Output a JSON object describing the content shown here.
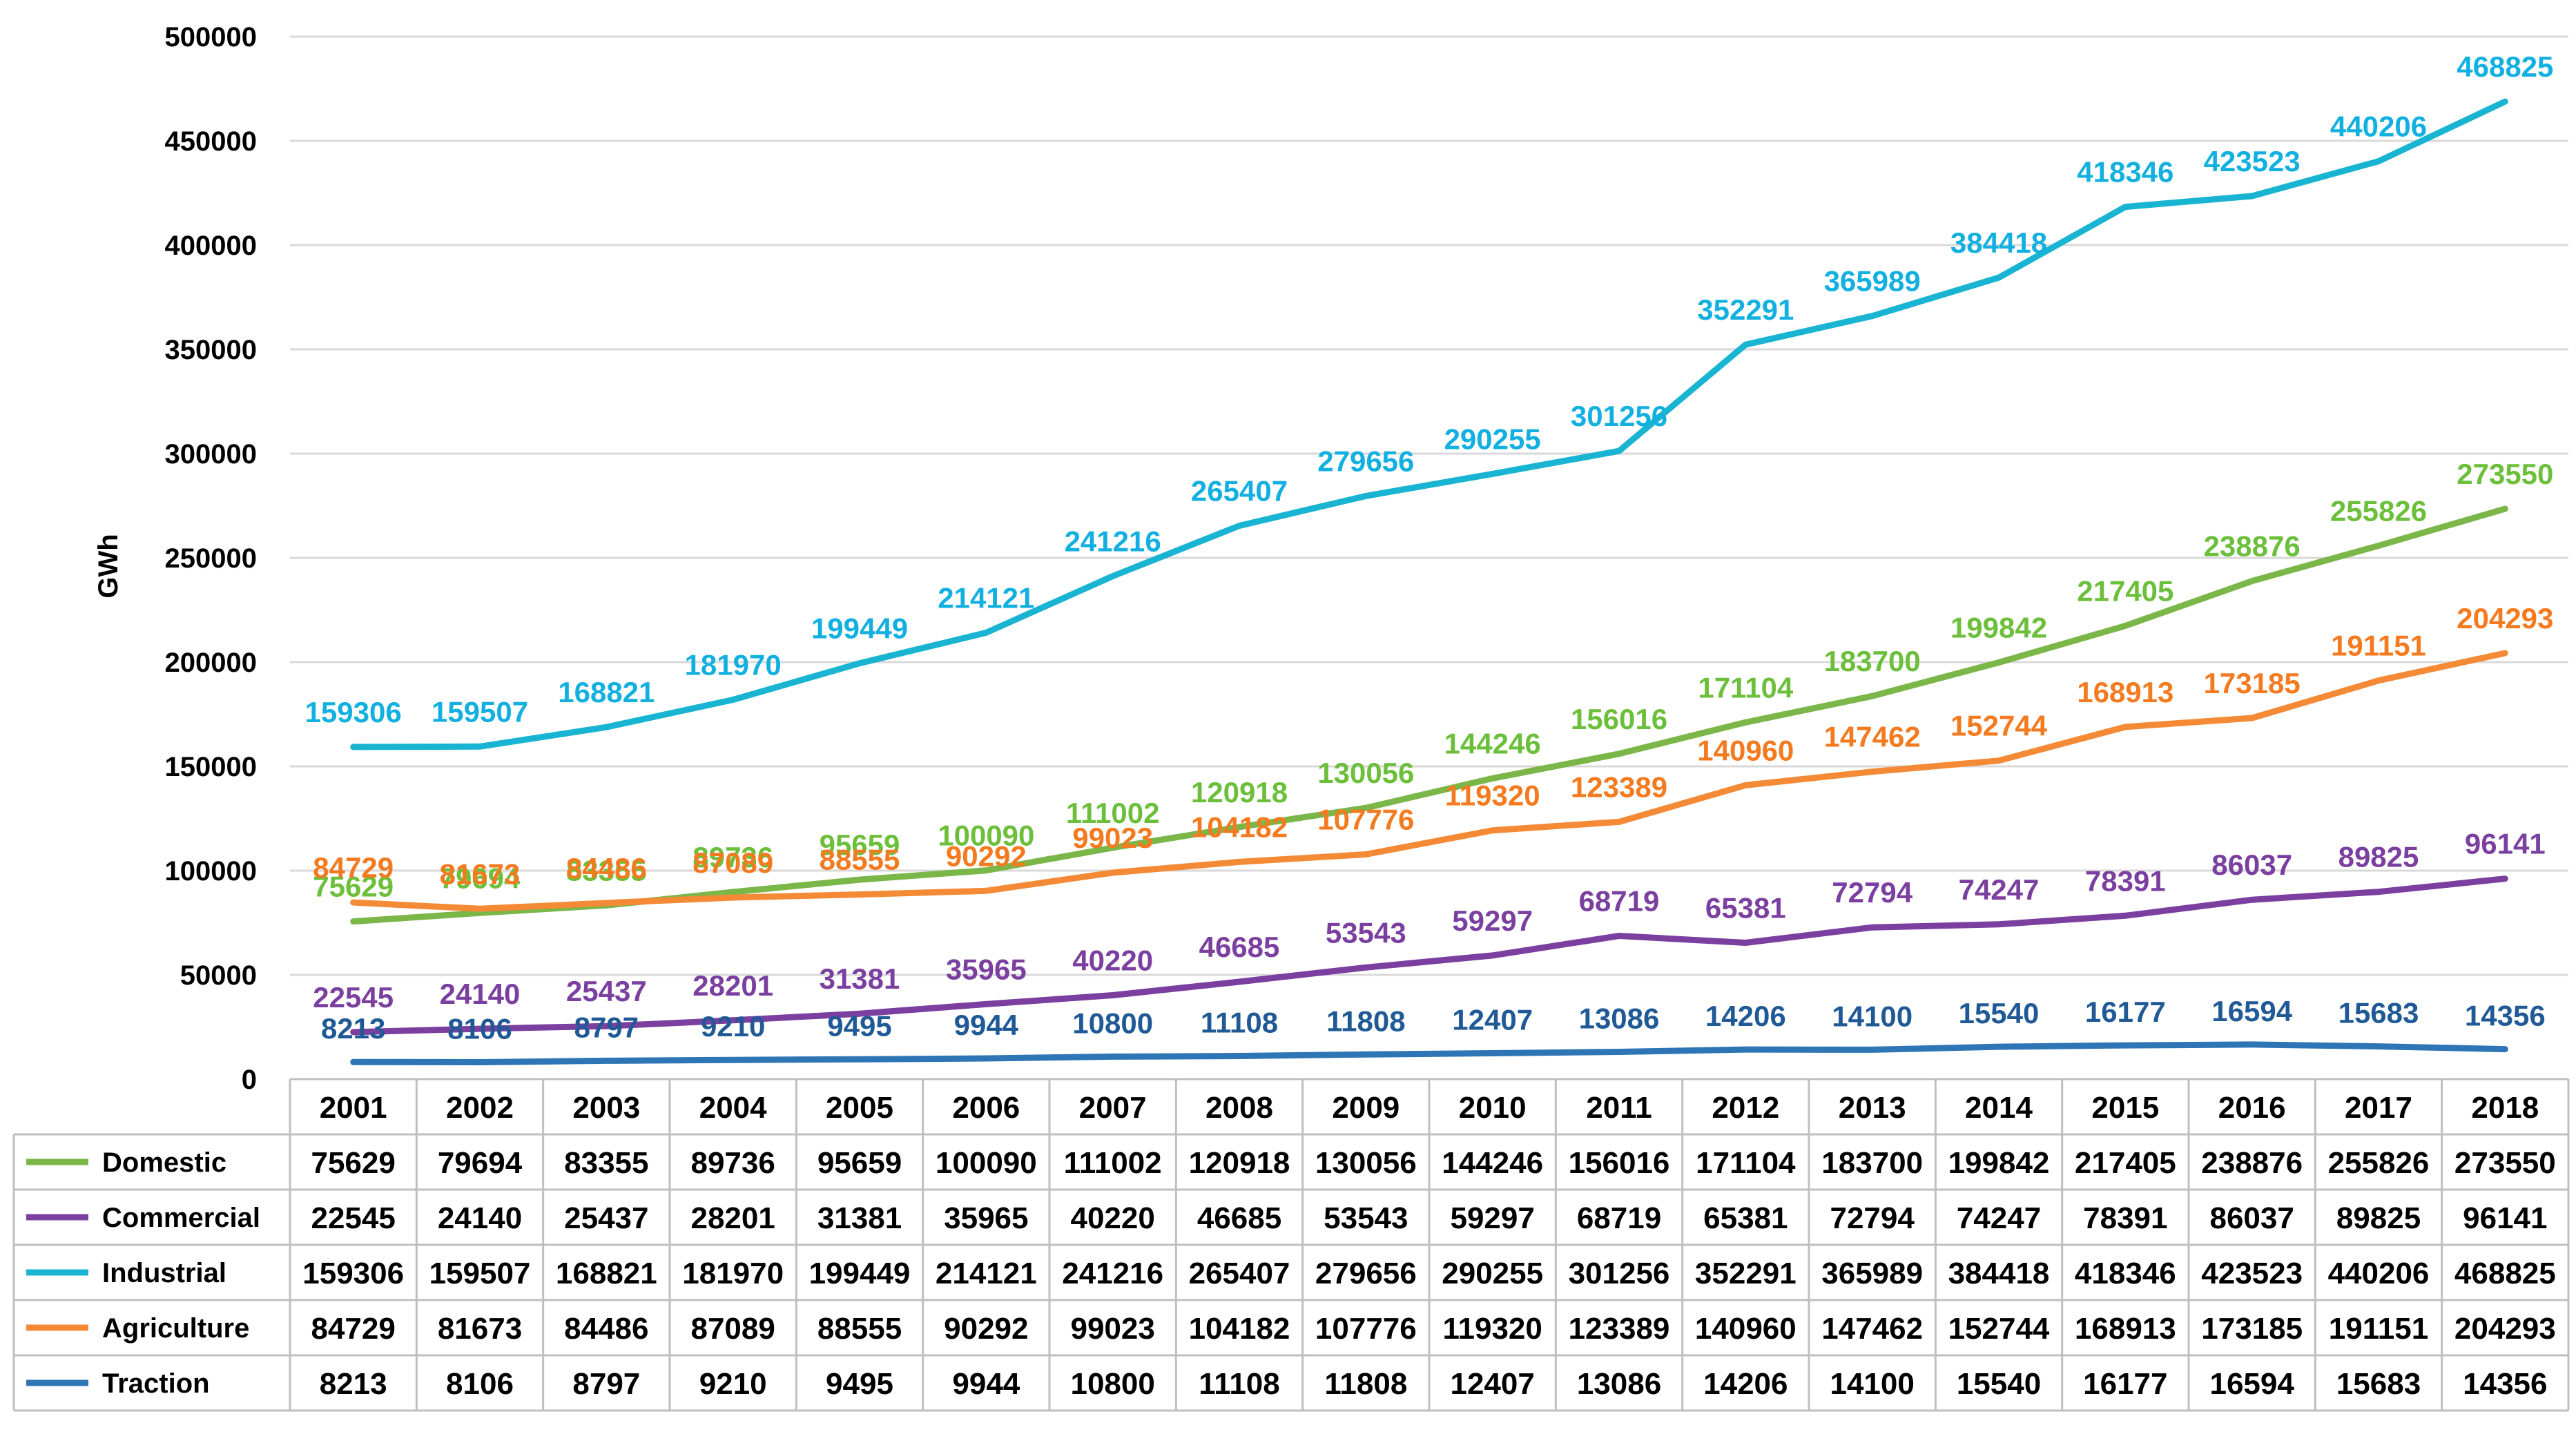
{
  "chart_data": {
    "type": "line",
    "title": "",
    "xlabel": "",
    "ylabel": "GWh",
    "ylim": [
      0,
      500000
    ],
    "yticks": [
      0,
      50000,
      100000,
      150000,
      200000,
      250000,
      300000,
      350000,
      400000,
      450000,
      500000
    ],
    "grid": true,
    "legend": "data-table-bottom",
    "categories": [
      "2001",
      "2002",
      "2003",
      "2004",
      "2005",
      "2006",
      "2007",
      "2008",
      "2009",
      "2010",
      "2011",
      "2012",
      "2013",
      "2014",
      "2015",
      "2016",
      "2017",
      "2018"
    ],
    "series": [
      {
        "name": "Domestic",
        "color": "#7ab648",
        "label_color": "#6cbf3a",
        "values": [
          75629,
          79694,
          83355,
          89736,
          95659,
          100090,
          111002,
          120918,
          130056,
          144246,
          156016,
          171104,
          183700,
          199842,
          217405,
          238876,
          255826,
          273550
        ]
      },
      {
        "name": "Commercial",
        "color": "#7b3fa0",
        "label_color": "#7b3fa0",
        "values": [
          22545,
          24140,
          25437,
          28201,
          31381,
          35965,
          40220,
          46685,
          53543,
          59297,
          68719,
          65381,
          72794,
          74247,
          78391,
          86037,
          89825,
          96141
        ]
      },
      {
        "name": "Industrial",
        "color": "#18b4d2",
        "label_color": "#12b0e0",
        "values": [
          159306,
          159507,
          168821,
          181970,
          199449,
          214121,
          241216,
          265407,
          279656,
          290255,
          301256,
          352291,
          365989,
          384418,
          418346,
          423523,
          440206,
          468825
        ]
      },
      {
        "name": "Agriculture",
        "color": "#f48a36",
        "label_color": "#f47a20",
        "values": [
          84729,
          81673,
          84486,
          87089,
          88555,
          90292,
          99023,
          104182,
          107776,
          119320,
          123389,
          140960,
          147462,
          152744,
          168913,
          173185,
          191151,
          204293
        ]
      },
      {
        "name": "Traction",
        "color": "#2e75b6",
        "label_color": "#1f5a96",
        "values": [
          8213,
          8106,
          8797,
          9210,
          9495,
          9944,
          10800,
          11108,
          11808,
          12407,
          13086,
          14206,
          14100,
          15540,
          16177,
          16594,
          15683,
          14356
        ]
      }
    ]
  }
}
